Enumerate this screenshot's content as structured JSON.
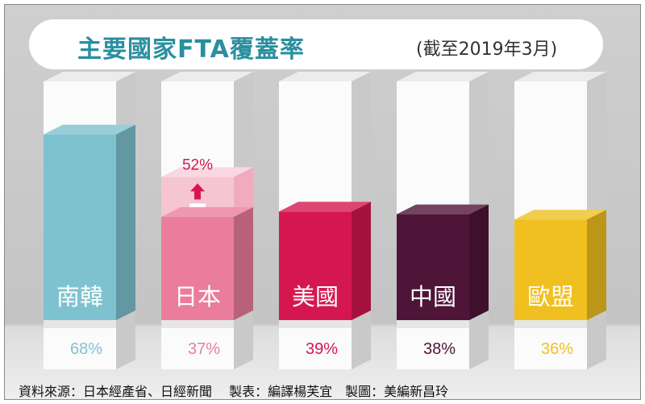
{
  "chart_data": {
    "type": "bar",
    "title": "主要國家FTA覆蓋率",
    "subtitle": "(截至2019年3月)",
    "categories": [
      "南韓",
      "日本",
      "美國",
      "中國",
      "歐盟"
    ],
    "values": [
      68,
      37,
      39,
      38,
      36
    ],
    "value_labels": [
      "68%",
      "37%",
      "39%",
      "38%",
      "36%"
    ],
    "target": {
      "category": "日本",
      "value": 52,
      "label": "52%"
    },
    "colors": [
      "#7fc2cf",
      "#ea7d9c",
      "#d5174f",
      "#4f1538",
      "#f0c020"
    ],
    "ylim": [
      0,
      100
    ]
  },
  "footer": "資料來源：日本經產省、日經新聞　 製表：編譯楊芙宜　製圖：美編新昌玲"
}
